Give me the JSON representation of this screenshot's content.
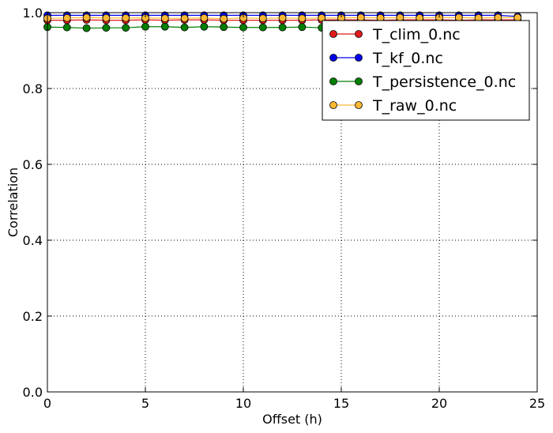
{
  "chart_data": {
    "type": "line",
    "xlabel": "Offset (h)",
    "ylabel": "Correlation",
    "xlim": [
      0,
      25
    ],
    "ylim": [
      0.0,
      1.0
    ],
    "xticks": [
      0,
      5,
      10,
      15,
      20,
      25
    ],
    "xtick_labels": [
      "0",
      "5",
      "10",
      "15",
      "20",
      "25"
    ],
    "yticks": [
      0.0,
      0.2,
      0.4,
      0.6,
      0.8,
      1.0
    ],
    "ytick_labels": [
      "0.0",
      "0.2",
      "0.4",
      "0.6",
      "0.8",
      "1.0"
    ],
    "grid": true,
    "legend_position": "top-right",
    "x": [
      0,
      1,
      2,
      3,
      4,
      5,
      6,
      7,
      8,
      9,
      10,
      11,
      12,
      13,
      14,
      15,
      16,
      17,
      18,
      19,
      20,
      21,
      22,
      23,
      24
    ],
    "series": [
      {
        "name": "T_clim_0.nc",
        "color": "#e31a1c",
        "values": [
          0.98,
          0.98,
          0.981,
          0.98,
          0.98,
          0.981,
          0.98,
          0.981,
          0.981,
          0.98,
          0.98,
          0.98,
          0.98,
          0.98,
          0.981,
          0.981,
          0.981,
          0.98,
          0.981,
          0.981,
          0.981,
          0.98,
          0.981,
          0.981,
          0.981
        ]
      },
      {
        "name": "T_kf_0.nc",
        "color": "#0000ee",
        "values": [
          0.993,
          0.993,
          0.993,
          0.993,
          0.993,
          0.993,
          0.993,
          0.993,
          0.993,
          0.993,
          0.993,
          0.993,
          0.993,
          0.993,
          0.993,
          0.993,
          0.993,
          0.993,
          0.993,
          0.993,
          0.993,
          0.993,
          0.993,
          0.993,
          0.99
        ]
      },
      {
        "name": "T_persistence_0.nc",
        "color": "#008000",
        "values": [
          0.962,
          0.961,
          0.959,
          0.96,
          0.96,
          0.963,
          0.963,
          0.961,
          0.963,
          0.962,
          0.961,
          0.961,
          0.961,
          0.962,
          0.96,
          0.961,
          0.961,
          0.961,
          0.961,
          0.961,
          0.961,
          0.961,
          0.961,
          0.961,
          0.961
        ]
      },
      {
        "name": "T_raw_0.nc",
        "color": "#ffb833",
        "values": [
          0.985,
          0.986,
          0.987,
          0.986,
          0.986,
          0.986,
          0.985,
          0.985,
          0.986,
          0.984,
          0.986,
          0.985,
          0.986,
          0.985,
          0.986,
          0.986,
          0.987,
          0.986,
          0.987,
          0.986,
          0.987,
          0.987,
          0.986,
          0.987,
          0.987
        ]
      }
    ]
  }
}
